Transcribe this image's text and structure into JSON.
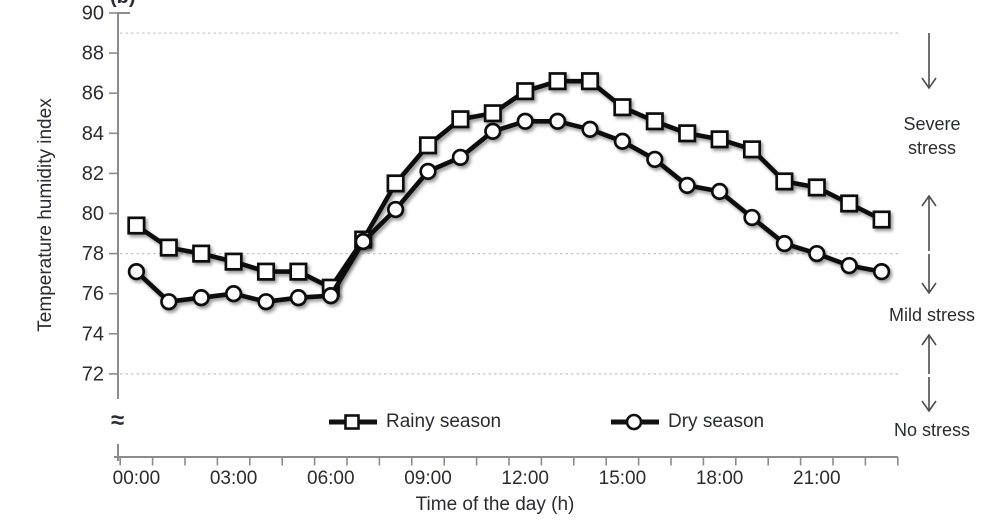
{
  "figure": {
    "panel_label": "(b)",
    "background_color": "#ffffff"
  },
  "chart_data": {
    "type": "line",
    "title": "",
    "xlabel": "Time of the day (h)",
    "ylabel": "Temperature humidity index",
    "x_categories": [
      "00:00",
      "01:00",
      "02:00",
      "03:00",
      "04:00",
      "05:00",
      "06:00",
      "07:00",
      "08:00",
      "09:00",
      "10:00",
      "11:00",
      "12:00",
      "13:00",
      "14:00",
      "15:00",
      "16:00",
      "17:00",
      "18:00",
      "19:00",
      "20:00",
      "21:00",
      "22:00",
      "23:00"
    ],
    "x_tick_labels": [
      "00:00",
      "03:00",
      "06:00",
      "09:00",
      "12:00",
      "15:00",
      "18:00",
      "21:00"
    ],
    "x_tick_label_hours": [
      0,
      3,
      6,
      9,
      12,
      15,
      18,
      21
    ],
    "y_ticks": [
      90,
      88,
      86,
      84,
      82,
      80,
      78,
      76,
      74,
      72
    ],
    "ylim_shown": [
      72,
      90
    ],
    "y_axis_break": true,
    "axis_break_symbol": "≈",
    "grid": "dashed horizontal threshold lines at 89, 78 and 72",
    "threshold_lines": [
      89,
      78,
      72
    ],
    "legend_position": "bottom-inside",
    "series": [
      {
        "name": "Rainy season",
        "marker": "square",
        "color": "#111111",
        "values": [
          79.4,
          78.3,
          78.0,
          77.6,
          77.1,
          77.1,
          76.3,
          78.7,
          81.5,
          83.4,
          84.7,
          85.0,
          86.1,
          86.6,
          86.6,
          85.3,
          84.6,
          84.0,
          83.7,
          83.2,
          81.6,
          81.3,
          80.5,
          79.7
        ]
      },
      {
        "name": "Dry season",
        "marker": "circle",
        "color": "#111111",
        "values": [
          77.1,
          75.6,
          75.8,
          76.0,
          75.6,
          75.8,
          75.9,
          78.6,
          80.2,
          82.1,
          82.8,
          84.1,
          84.6,
          84.6,
          84.2,
          83.6,
          82.7,
          81.4,
          81.1,
          79.8,
          78.5,
          78.0,
          77.4,
          77.1
        ]
      }
    ],
    "stress_bands": [
      {
        "label": "Severe stress",
        "between": [
          89,
          78
        ]
      },
      {
        "label": "Mild stress",
        "between": [
          78,
          72
        ]
      },
      {
        "label": "No stress",
        "between": [
          72,
          null
        ]
      }
    ]
  },
  "colors": {
    "series": "#111111",
    "marker_fill": "#ffffff",
    "grid": "#c4c4c4",
    "axis": "#8c8c8c",
    "text": "#2b2b33",
    "arrow": "#4d4d4d"
  }
}
